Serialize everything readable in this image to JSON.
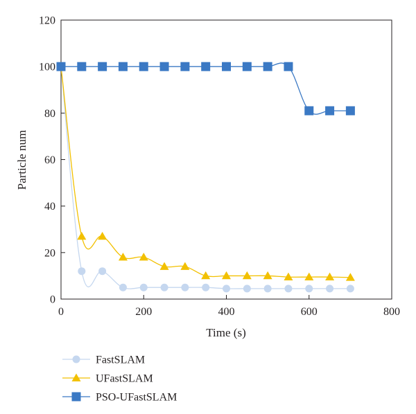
{
  "chart_data": {
    "type": "line",
    "title": "",
    "xlabel": "Time (s)",
    "ylabel": "Particle num",
    "xlim": [
      0,
      800
    ],
    "ylim": [
      0,
      120
    ],
    "xticks": [
      0,
      200,
      400,
      600,
      800
    ],
    "yticks": [
      0,
      20,
      40,
      60,
      80,
      100,
      120
    ],
    "grid": false,
    "legend_position": "bottom-left",
    "series": [
      {
        "name": "FastSLAM",
        "color": "#c5d7ef",
        "marker": "circle",
        "x": [
          0,
          50,
          100,
          150,
          200,
          250,
          300,
          350,
          400,
          450,
          500,
          550,
          600,
          650,
          700
        ],
        "y": [
          100,
          12,
          12,
          5,
          5,
          5,
          5,
          5,
          4.5,
          4.5,
          4.5,
          4.5,
          4.5,
          4.5,
          4.5
        ]
      },
      {
        "name": "UFastSLAM",
        "color": "#f2c000",
        "marker": "triangle",
        "x": [
          0,
          50,
          100,
          150,
          200,
          250,
          300,
          350,
          400,
          450,
          500,
          550,
          600,
          650,
          700
        ],
        "y": [
          100,
          27,
          27,
          18,
          18,
          14,
          14,
          10,
          10,
          10,
          10,
          9.5,
          9.5,
          9.5,
          9.3
        ]
      },
      {
        "name": "PSO-UFastSLAM",
        "color": "#3b79c4",
        "marker": "square",
        "x": [
          0,
          50,
          100,
          150,
          200,
          250,
          300,
          350,
          400,
          450,
          500,
          550,
          600,
          650,
          700
        ],
        "y": [
          100,
          100,
          100,
          100,
          100,
          100,
          100,
          100,
          100,
          100,
          100,
          100,
          81,
          81,
          81
        ]
      }
    ]
  }
}
